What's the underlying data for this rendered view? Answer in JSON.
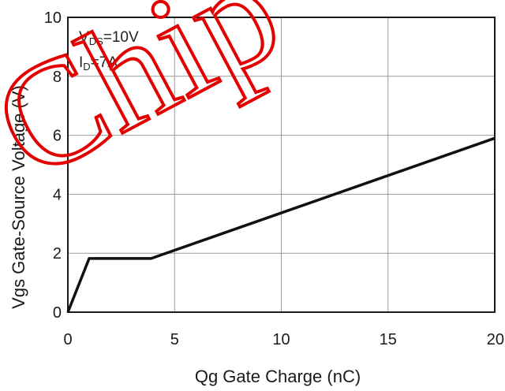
{
  "chart_data": {
    "type": "line",
    "xlabel": "Qg Gate Charge (nC)",
    "ylabel": "Vgs Gate-Source Voltage (V)",
    "xlim": [
      0,
      20
    ],
    "ylim": [
      0,
      10
    ],
    "x_ticks": [
      0,
      5,
      10,
      15,
      20
    ],
    "y_ticks": [
      0,
      2,
      4,
      6,
      8,
      10
    ],
    "grid": true,
    "annotations": [
      {
        "main": "V",
        "sub": "DS",
        "rest": "=10V"
      },
      {
        "main": "I",
        "sub": "D",
        "rest": "=7A"
      }
    ],
    "series": [
      {
        "x": [
          0,
          1.0,
          3.9,
          20
        ],
        "y": [
          0,
          1.82,
          1.82,
          5.9
        ]
      }
    ]
  },
  "watermark": {
    "text": "Chip",
    "color": "#e30000"
  }
}
